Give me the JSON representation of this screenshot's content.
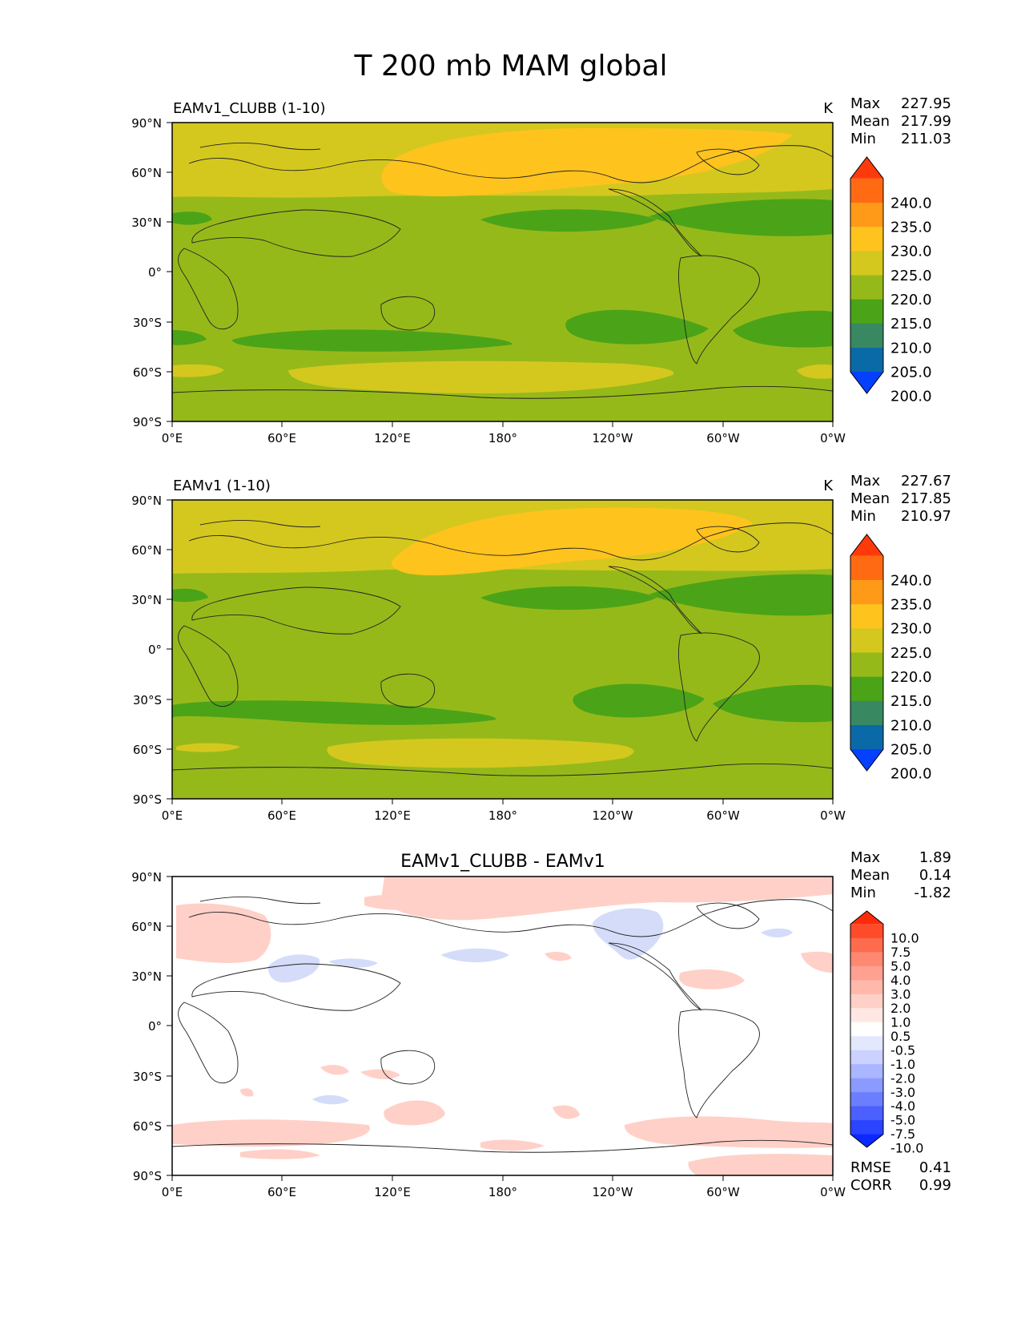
{
  "figure": {
    "title": "T 200 mb MAM global",
    "x_ticks": [
      "0°E",
      "60°E",
      "120°E",
      "180°",
      "120°W",
      "60°W",
      "0°W"
    ],
    "y_ticks": [
      "90°N",
      "60°N",
      "30°N",
      "0°",
      "30°S",
      "60°S",
      "90°S"
    ]
  },
  "panels": [
    {
      "id": "test",
      "left_label": "EAMv1_CLUBB (1-10)",
      "center_label": "",
      "units": "K",
      "stats": [
        {
          "label": "Max",
          "value": "227.95"
        },
        {
          "label": "Mean",
          "value": "217.99"
        },
        {
          "label": "Min",
          "value": "211.03"
        }
      ],
      "colorbar": {
        "labels": [
          "240.0",
          "235.0",
          "230.0",
          "225.0",
          "220.0",
          "215.0",
          "210.0",
          "205.0",
          "200.0"
        ],
        "colors_top_to_bottom": [
          "#ff3a0a",
          "#ff6a12",
          "#ff9a18",
          "#ffc31e",
          "#d4c81f",
          "#96b91a",
          "#4ba318",
          "#388862",
          "#0a6aa8",
          "#0540ff"
        ]
      },
      "field_colors": {
        "base": "#96b91a",
        "warm": "#d4c81f",
        "warmer": "#ffc31e",
        "cool": "#4ba318",
        "coolest": "#388862"
      }
    },
    {
      "id": "reference",
      "left_label": "EAMv1 (1-10)",
      "center_label": "",
      "units": "K",
      "stats": [
        {
          "label": "Max",
          "value": "227.67"
        },
        {
          "label": "Mean",
          "value": "217.85"
        },
        {
          "label": "Min",
          "value": "210.97"
        }
      ],
      "colorbar": {
        "labels": [
          "240.0",
          "235.0",
          "230.0",
          "225.0",
          "220.0",
          "215.0",
          "210.0",
          "205.0",
          "200.0"
        ],
        "colors_top_to_bottom": [
          "#ff3a0a",
          "#ff6a12",
          "#ff9a18",
          "#ffc31e",
          "#d4c81f",
          "#96b91a",
          "#4ba318",
          "#388862",
          "#0a6aa8",
          "#0540ff"
        ]
      },
      "field_colors": {
        "base": "#96b91a",
        "warm": "#d4c81f",
        "warmer": "#ffc31e",
        "cool": "#4ba318",
        "coolest": "#388862"
      }
    },
    {
      "id": "difference",
      "left_label": "",
      "center_label": "EAMv1_CLUBB - EAMv1",
      "units": "",
      "stats": [
        {
          "label": "Max",
          "value": "1.89"
        },
        {
          "label": "Mean",
          "value": "0.14"
        },
        {
          "label": "Min",
          "value": "-1.82"
        }
      ],
      "colorbar": {
        "labels": [
          "10.0",
          "7.5",
          "5.0",
          "4.0",
          "3.0",
          "2.0",
          "1.0",
          "0.5",
          "-0.5",
          "-1.0",
          "-2.0",
          "-3.0",
          "-4.0",
          "-5.0",
          "-7.5",
          "-10.0"
        ],
        "colors_top_to_bottom": [
          "#ff2a0a",
          "#ff4b2a",
          "#ff6b4d",
          "#ff8870",
          "#ffa090",
          "#ffb8aa",
          "#ffd0c8",
          "#ffe8e4",
          "#ffffff",
          "#e4e8ff",
          "#cbd2ff",
          "#aab6ff",
          "#8a9aff",
          "#6b7eff",
          "#4b60ff",
          "#2a44ff",
          "#0a28ff"
        ]
      },
      "field_colors": {
        "base": "#ffffff",
        "pos": "#ffd0c8",
        "neg": "#d4dcfa"
      },
      "metrics": [
        {
          "label": "RMSE",
          "value": "0.41"
        },
        {
          "label": "CORR",
          "value": "0.99"
        }
      ]
    }
  ]
}
